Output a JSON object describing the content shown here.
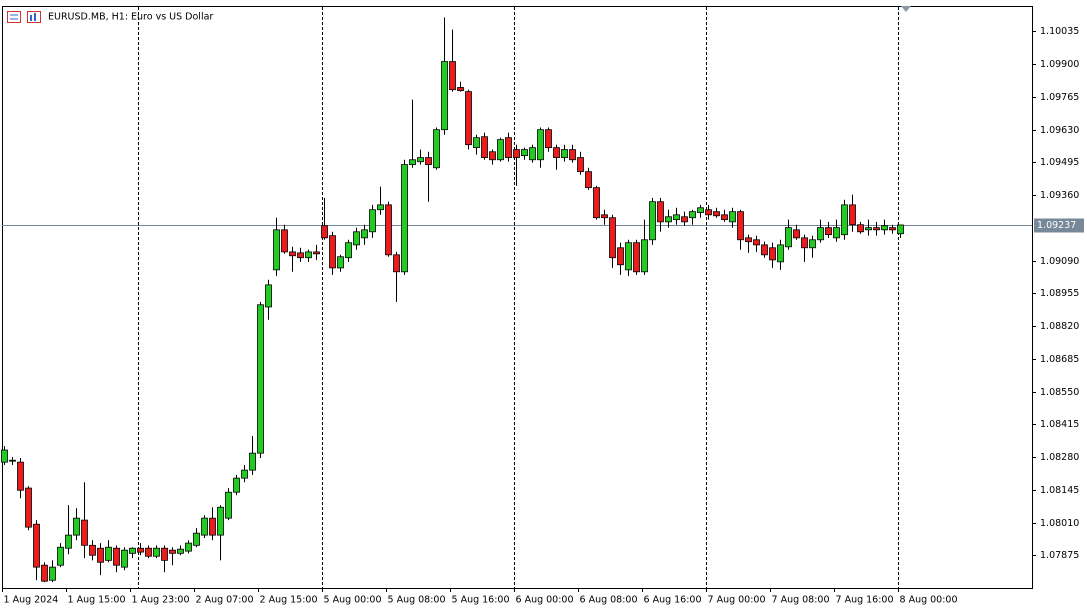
{
  "chart_data": {
    "type": "candlestick",
    "title": "EURUSD.MB, H1:  Euro vs US Dollar",
    "categories": [
      "1 Aug 2024",
      null,
      null,
      null,
      null,
      null,
      null,
      null,
      "1 Aug 15:00",
      null,
      null,
      null,
      null,
      null,
      null,
      null,
      "1 Aug 23:00",
      null,
      null,
      null,
      null,
      null,
      null,
      null,
      "2 Aug 07:00",
      null,
      null,
      null,
      null,
      null,
      null,
      null,
      "2 Aug 15:00",
      null,
      null,
      null,
      null,
      null,
      null,
      null,
      "5 Aug 00:00",
      null,
      null,
      null,
      null,
      null,
      null,
      null,
      "5 Aug 08:00",
      null,
      null,
      null,
      null,
      null,
      null,
      null,
      "5 Aug 16:00",
      null,
      null,
      null,
      null,
      null,
      null,
      null,
      "6 Aug 00:00",
      null,
      null,
      null,
      null,
      null,
      null,
      null,
      "6 Aug 08:00",
      null,
      null,
      null,
      null,
      null,
      null,
      null,
      "6 Aug 16:00",
      null,
      null,
      null,
      null,
      null,
      null,
      null,
      "7 Aug 00:00",
      null,
      null,
      null,
      null,
      null,
      null,
      null,
      "7 Aug 08:00",
      null,
      null,
      null,
      null,
      null,
      null,
      null,
      "7 Aug 16:00",
      null,
      null,
      null,
      null,
      null,
      null,
      null,
      "8 Aug 00:00"
    ],
    "open": [
      1.08259,
      1.08263,
      1.08259,
      1.08152,
      1.08003,
      1.07834,
      1.07772,
      1.07834,
      1.07904,
      1.07958,
      1.0802,
      1.07916,
      1.07904,
      1.07854,
      1.07904,
      1.07826,
      1.07883,
      1.07904,
      1.07904,
      1.07871,
      1.07904,
      1.07896,
      1.07883,
      1.07892,
      1.07916,
      1.07958,
      1.08028,
      1.07958,
      1.08028,
      1.08135,
      1.08193,
      1.08226,
      1.08296,
      1.08899,
      1.09052,
      1.09217,
      1.09126,
      1.09122,
      1.09102,
      1.09126,
      1.09234,
      1.09193,
      1.0906,
      1.09102,
      1.09155,
      1.09184,
      1.09209,
      1.093,
      1.0932,
      1.09114,
      1.09044,
      1.09486,
      1.09498,
      1.09515,
      1.09473,
      1.0963,
      1.09911,
      1.09804,
      1.09787,
      1.09556,
      1.09601,
      1.09539,
      1.09506,
      1.09597,
      1.09548,
      1.09523,
      1.09506,
      1.09506,
      1.0963,
      1.09556,
      1.09515,
      1.09548,
      1.09515,
      1.09457,
      1.09391,
      1.09279,
      1.09267,
      1.09143,
      1.09052,
      1.09164,
      1.09044,
      1.09176,
      1.09333,
      1.0925,
      1.09259,
      1.09271,
      1.09267,
      1.09288,
      1.093,
      1.09292,
      1.09279,
      1.0925,
      1.09292,
      1.09184,
      1.09176,
      1.09155,
      1.09143,
      1.09085,
      1.09147,
      1.09217,
      1.09184,
      1.09143,
      1.09176,
      1.09226,
      1.09184,
      1.09197,
      1.0932,
      1.09238,
      1.09217,
      1.09226,
      1.09217,
      1.09226,
      1.09201
    ],
    "high": [
      1.08325,
      1.0828,
      1.08276,
      1.0816,
      1.0802,
      1.07846,
      1.07854,
      1.07925,
      1.08082,
      1.08069,
      1.08176,
      1.07937,
      1.07925,
      1.07937,
      1.07916,
      1.07908,
      1.07908,
      1.07925,
      1.07916,
      1.07916,
      1.07916,
      1.07908,
      1.07916,
      1.07937,
      1.07987,
      1.0804,
      1.08073,
      1.08082,
      1.08152,
      1.08206,
      1.08247,
      1.08367,
      1.0892,
      1.09011,
      1.09267,
      1.09238,
      1.09147,
      1.09143,
      1.09135,
      1.09155,
      1.09349,
      1.09209,
      1.09114,
      1.09176,
      1.09226,
      1.09238,
      1.0932,
      1.09395,
      1.09333,
      1.09126,
      1.09506,
      1.09754,
      1.09548,
      1.09539,
      1.09639,
      1.10093,
      1.10043,
      1.09828,
      1.09795,
      1.09609,
      1.09618,
      1.09548,
      1.09597,
      1.09618,
      1.09568,
      1.09556,
      1.09568,
      1.09639,
      1.09639,
      1.09568,
      1.09568,
      1.09568,
      1.09539,
      1.09473,
      1.09399,
      1.093,
      1.09279,
      1.09164,
      1.09176,
      1.09176,
      1.09259,
      1.09349,
      1.09349,
      1.093,
      1.09308,
      1.09292,
      1.093,
      1.0932,
      1.0932,
      1.09308,
      1.093,
      1.09308,
      1.093,
      1.09197,
      1.09193,
      1.09168,
      1.09164,
      1.09176,
      1.09259,
      1.09238,
      1.09197,
      1.09193,
      1.09259,
      1.0925,
      1.09259,
      1.09341,
      1.09362,
      1.0925,
      1.09259,
      1.0925,
      1.09259,
      1.09238,
      1.09238
    ],
    "low": [
      1.08247,
      1.08247,
      1.0811,
      1.07978,
      1.07772,
      1.07764,
      1.07764,
      1.07826,
      1.07879,
      1.07937,
      1.07863,
      1.07854,
      1.07793,
      1.07846,
      1.07805,
      1.07813,
      1.07863,
      1.07875,
      1.07863,
      1.07863,
      1.07805,
      1.07834,
      1.07875,
      1.07883,
      1.07908,
      1.07946,
      1.07937,
      1.07854,
      1.0802,
      1.08123,
      1.08176,
      1.08206,
      1.08276,
      1.08846,
      1.09027,
      1.09118,
      1.09044,
      1.09085,
      1.09085,
      1.09093,
      1.09176,
      1.09031,
      1.09044,
      1.09085,
      1.09135,
      1.09155,
      1.09184,
      1.09279,
      1.09106,
      1.0892,
      1.09031,
      1.09473,
      1.09486,
      1.09333,
      1.09465,
      1.09609,
      1.09787,
      1.09787,
      1.09548,
      1.09527,
      1.09506,
      1.09486,
      1.09498,
      1.09498,
      1.09399,
      1.09506,
      1.09494,
      1.09473,
      1.09539,
      1.09465,
      1.09498,
      1.09494,
      1.09444,
      1.09382,
      1.09259,
      1.09238,
      1.0906,
      1.09031,
      1.09027,
      1.09031,
      1.09031,
      1.09155,
      1.09209,
      1.09226,
      1.09238,
      1.09234,
      1.09238,
      1.09267,
      1.09259,
      1.09267,
      1.0925,
      1.09226,
      1.09135,
      1.09122,
      1.09126,
      1.09102,
      1.0906,
      1.09052,
      1.09135,
      1.09176,
      1.09085,
      1.09102,
      1.09164,
      1.09184,
      1.09168,
      1.09176,
      1.09209,
      1.09201,
      1.09193,
      1.09193,
      1.09197,
      1.09201,
      1.09184
    ],
    "close": [
      1.08309,
      1.08267,
      1.08143,
      1.07991,
      1.07826,
      1.07768,
      1.07826,
      1.07908,
      1.07958,
      1.08028,
      1.07916,
      1.07875,
      1.07846,
      1.07908,
      1.07834,
      1.07896,
      1.07904,
      1.07888,
      1.07871,
      1.07904,
      1.07854,
      1.07883,
      1.079,
      1.07925,
      1.07966,
      1.08028,
      1.07958,
      1.08073,
      1.08135,
      1.08193,
      1.08226,
      1.08296,
      1.08908,
      1.0899,
      1.09217,
      1.09126,
      1.0911,
      1.09102,
      1.09126,
      1.09118,
      1.09184,
      1.0906,
      1.09106,
      1.09164,
      1.09209,
      1.09217,
      1.093,
      1.0932,
      1.09114,
      1.09044,
      1.09486,
      1.09506,
      1.09515,
      1.09486,
      1.0963,
      1.09911,
      1.09795,
      1.09791,
      1.09568,
      1.09597,
      1.09515,
      1.09506,
      1.09589,
      1.09515,
      1.09515,
      1.09548,
      1.09556,
      1.0963,
      1.09556,
      1.09515,
      1.09548,
      1.09506,
      1.09457,
      1.09391,
      1.09267,
      1.09267,
      1.09102,
      1.09073,
      1.09164,
      1.09044,
      1.09176,
      1.09333,
      1.0925,
      1.09271,
      1.09279,
      1.0925,
      1.09292,
      1.09308,
      1.09279,
      1.09275,
      1.09259,
      1.09292,
      1.09176,
      1.09168,
      1.09155,
      1.09114,
      1.09093,
      1.09155,
      1.09226,
      1.09184,
      1.09143,
      1.09176,
      1.09226,
      1.09197,
      1.09226,
      1.0932,
      1.09238,
      1.09209,
      1.09226,
      1.09217,
      1.09234,
      1.09217,
      1.09237
    ],
    "up_color": "#22cc22",
    "down_color": "#e81e1e",
    "last_price": 1.09237,
    "ylim": [
      1.0774,
      1.1014
    ],
    "yticks": [
      {
        "value": 1.10035,
        "label": "1.10035"
      },
      {
        "value": 1.099,
        "label": "1.09900"
      },
      {
        "value": 1.09765,
        "label": "1.09765"
      },
      {
        "value": 1.0963,
        "label": "1.09630"
      },
      {
        "value": 1.09495,
        "label": "1.09495"
      },
      {
        "value": 1.0936,
        "label": "1.09360"
      },
      {
        "value": 1.0909,
        "label": "1.09090"
      },
      {
        "value": 1.08955,
        "label": "1.08955"
      },
      {
        "value": 1.0882,
        "label": "1.08820"
      },
      {
        "value": 1.08685,
        "label": "1.08685"
      },
      {
        "value": 1.0855,
        "label": "1.08550"
      },
      {
        "value": 1.08415,
        "label": "1.08415"
      },
      {
        "value": 1.0828,
        "label": "1.08280"
      },
      {
        "value": 1.08145,
        "label": "1.08145"
      },
      {
        "value": 1.0801,
        "label": "1.08010"
      },
      {
        "value": 1.07875,
        "label": "1.07875"
      }
    ]
  }
}
